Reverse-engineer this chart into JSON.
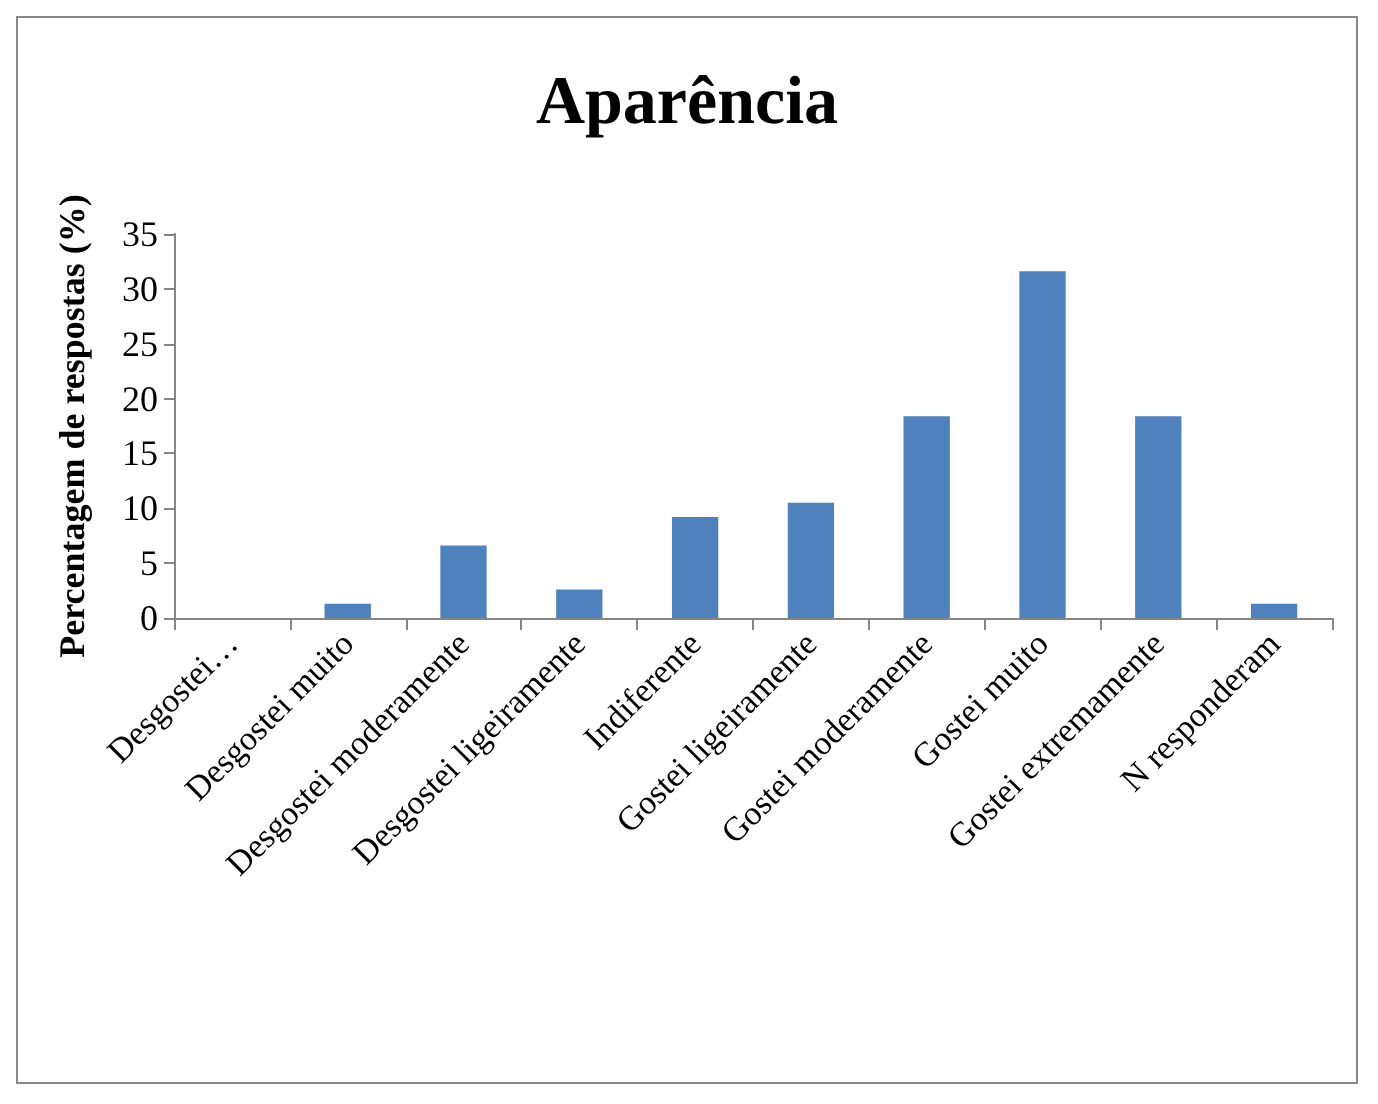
{
  "chart_data": {
    "type": "bar",
    "title": "Aparência",
    "ylabel": "Percentagem de respostas (%)",
    "categories": [
      "Desgostei…",
      "Desgostei muito",
      "Desgostei moderamente",
      "Desgostei ligeiramente",
      "Indiferente",
      "Gostei ligeiramente",
      "Gostei moderamente",
      "Gostei muito",
      "Gostei extremamente",
      "N responderam"
    ],
    "values": [
      0,
      1.3,
      6.6,
      2.6,
      9.2,
      10.5,
      18.4,
      31.6,
      18.4,
      1.3
    ],
    "color": "#4f81bd",
    "ylim": [
      0,
      35
    ],
    "yticks": [
      0,
      5,
      10,
      15,
      20,
      25,
      30,
      35
    ],
    "grid": false
  }
}
